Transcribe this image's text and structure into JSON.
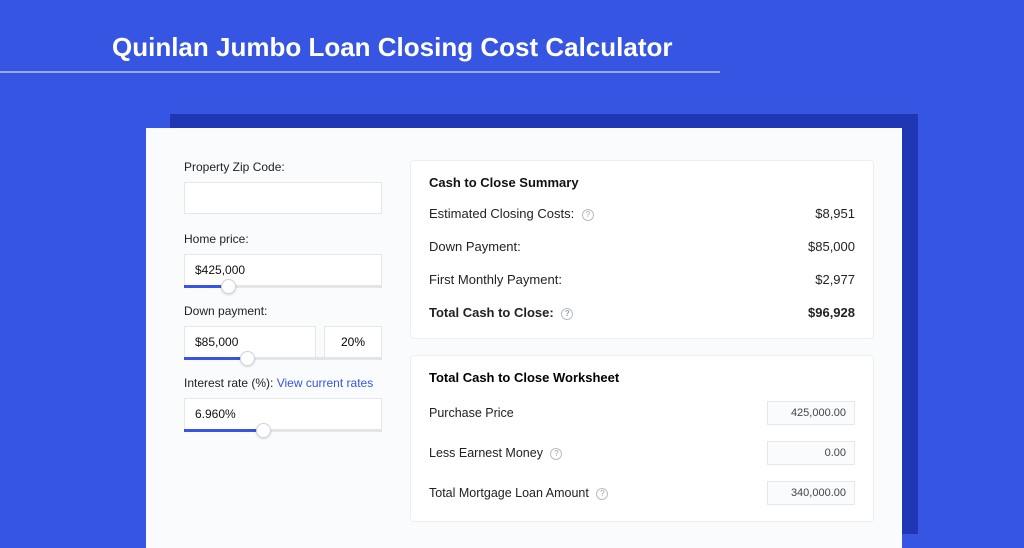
{
  "page": {
    "title": "Quinlan Jumbo Loan Closing Cost Calculator",
    "background_color": "#3555e2",
    "title_color": "#ffffff",
    "title_fontsize": 26
  },
  "card": {
    "background_color": "#fafbfc",
    "shadow_color": "#1f37b5"
  },
  "form": {
    "zip": {
      "label": "Property Zip Code:",
      "value": ""
    },
    "home_price": {
      "label": "Home price:",
      "value": "$425,000",
      "slider": {
        "fill_pct": 22,
        "thumb_pct": 22,
        "fill_color": "#3555e2"
      }
    },
    "down_payment": {
      "label": "Down payment:",
      "amount": "$85,000",
      "percent": "20%",
      "slider": {
        "fill_pct": 32,
        "thumb_pct": 32,
        "fill_color": "#3555e2"
      }
    },
    "interest_rate": {
      "label": "Interest rate (%):",
      "link_text": "View current rates",
      "value": "6.960%",
      "slider": {
        "fill_pct": 40,
        "thumb_pct": 40,
        "fill_color": "#3555e2"
      }
    }
  },
  "summary": {
    "title": "Cash to Close Summary",
    "rows": [
      {
        "label": "Estimated Closing Costs:",
        "help": true,
        "value": "$8,951"
      },
      {
        "label": "Down Payment:",
        "help": false,
        "value": "$85,000"
      },
      {
        "label": "First Monthly Payment:",
        "help": false,
        "value": "$2,977"
      }
    ],
    "total": {
      "label": "Total Cash to Close:",
      "help": true,
      "value": "$96,928"
    }
  },
  "worksheet": {
    "title": "Total Cash to Close Worksheet",
    "rows": [
      {
        "label": "Purchase Price",
        "help": false,
        "value": "425,000.00"
      },
      {
        "label": "Less Earnest Money",
        "help": true,
        "value": "0.00"
      },
      {
        "label": "Total Mortgage Loan Amount",
        "help": true,
        "value": "340,000.00"
      }
    ]
  }
}
